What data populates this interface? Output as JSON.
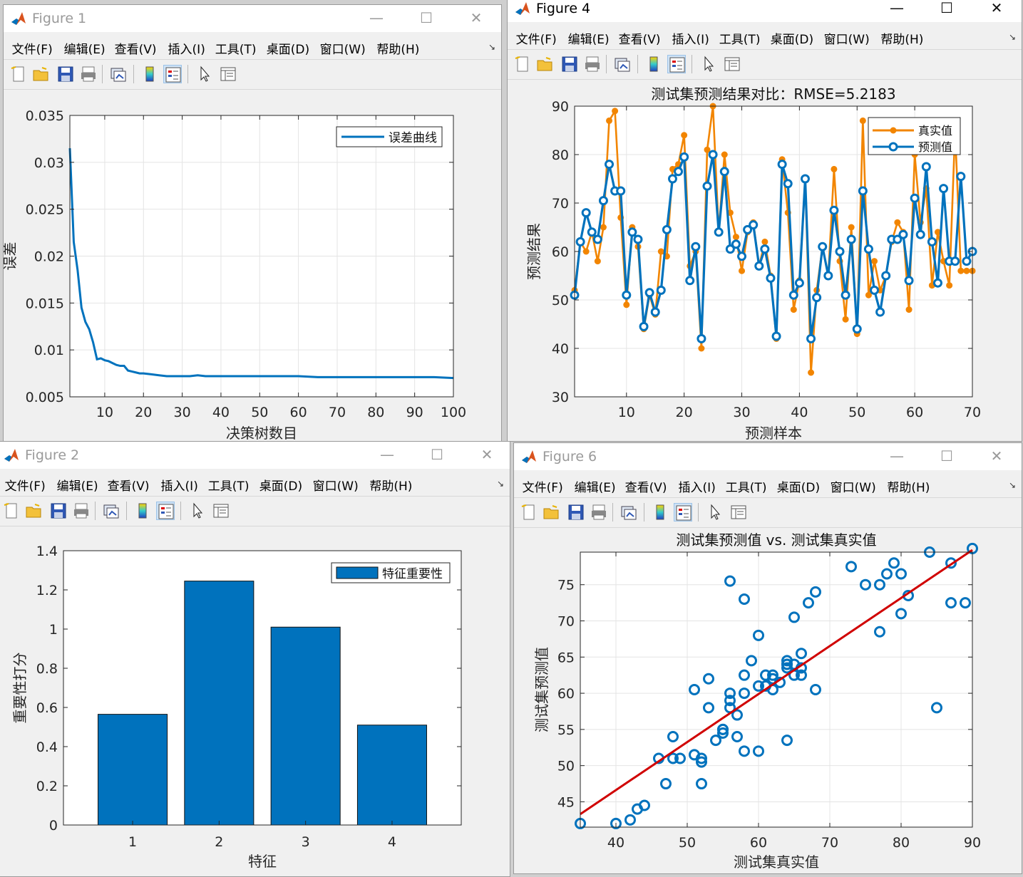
{
  "menus": [
    "文件(F)",
    "编辑(E)",
    "查看(V)",
    "插入(I)",
    "工具(T)",
    "桌面(D)",
    "窗口(W)",
    "帮助(H)"
  ],
  "window_buttons": {
    "minimize": "—",
    "maximize": "☐",
    "close": "✕"
  },
  "toolbar_icons": [
    "new-figure-icon",
    "open-file-icon",
    "save-icon",
    "print-icon",
    "link-plot-icon",
    "colorbar-icon",
    "legend-icon",
    "pointer-icon",
    "property-inspector-icon"
  ],
  "colors": {
    "blue": "#0072bd",
    "orange": "#f28500",
    "red": "#d00000",
    "axes_bg": "#ffffff",
    "grid": "#e4e4e4"
  },
  "windows": {
    "fig1": {
      "title": "Figure 1",
      "active": false
    },
    "fig4": {
      "title": "Figure 4",
      "active": true
    },
    "fig2": {
      "title": "Figure 2",
      "active": false
    },
    "fig6": {
      "title": "Figure 6",
      "active": false
    }
  },
  "chart_data": [
    {
      "id": "fig1",
      "type": "line",
      "title": "",
      "xlabel": "决策树数目",
      "ylabel": "误差",
      "xlim": [
        1,
        100
      ],
      "ylim": [
        0.005,
        0.035
      ],
      "xticks": [
        10,
        20,
        30,
        40,
        50,
        60,
        70,
        80,
        90,
        100
      ],
      "yticks": [
        0.005,
        0.01,
        0.015,
        0.02,
        0.025,
        0.03,
        0.035
      ],
      "yticklabels": [
        "0.005",
        "0.01",
        "0.015",
        "0.02",
        "0.025",
        "0.03",
        "0.035"
      ],
      "grid": true,
      "legend_position": "top-right",
      "series": [
        {
          "name": "误差曲线",
          "color": "#0072bd",
          "x": [
            1,
            2,
            3,
            4,
            5,
            6,
            7,
            8,
            9,
            10,
            11,
            12,
            13,
            14,
            15,
            16,
            17,
            18,
            19,
            20,
            22,
            24,
            26,
            28,
            30,
            32,
            34,
            36,
            38,
            40,
            45,
            50,
            55,
            60,
            65,
            70,
            75,
            80,
            85,
            90,
            95,
            100
          ],
          "y": [
            0.0315,
            0.0215,
            0.0185,
            0.0145,
            0.013,
            0.0122,
            0.0108,
            0.009,
            0.0091,
            0.0089,
            0.0088,
            0.0086,
            0.0084,
            0.0083,
            0.0083,
            0.0078,
            0.0077,
            0.0076,
            0.0075,
            0.0075,
            0.0074,
            0.0073,
            0.0072,
            0.0072,
            0.0072,
            0.0072,
            0.0073,
            0.0072,
            0.0072,
            0.0072,
            0.0072,
            0.0072,
            0.0072,
            0.0072,
            0.0071,
            0.0071,
            0.0071,
            0.0071,
            0.0071,
            0.0071,
            0.0071,
            0.007
          ]
        }
      ]
    },
    {
      "id": "fig4",
      "type": "line",
      "title": "测试集预测结果对比：RMSE=5.2183",
      "xlabel": "预测样本",
      "ylabel": "预测结果",
      "xlim": [
        1,
        70
      ],
      "ylim": [
        30,
        90
      ],
      "xticks": [
        10,
        20,
        30,
        40,
        50,
        60,
        70
      ],
      "yticks": [
        30,
        40,
        50,
        60,
        70,
        80,
        90
      ],
      "grid": true,
      "legend_position": "top-right",
      "series": [
        {
          "name": "真实值",
          "color": "#f28500",
          "marker": "dot",
          "y": [
            52,
            62,
            60,
            64,
            58,
            65,
            87,
            89,
            67,
            49,
            65,
            61,
            44,
            51,
            47,
            60,
            59,
            77,
            78,
            84,
            57,
            60,
            40,
            81,
            90,
            64,
            80,
            68,
            63,
            56,
            64,
            66,
            57,
            62,
            55,
            42,
            79,
            68,
            48,
            54,
            75,
            35,
            52,
            61,
            55,
            77,
            58,
            46,
            65,
            43,
            87,
            51,
            58,
            52,
            55,
            62,
            66,
            64,
            48,
            80,
            66,
            73,
            53,
            64,
            58,
            53,
            85,
            56,
            56,
            56
          ]
        },
        {
          "name": "预测值",
          "color": "#0072bd",
          "marker": "circle",
          "y": [
            51,
            62,
            68,
            64,
            62.5,
            70.5,
            78,
            72.5,
            72.5,
            51,
            64,
            62.5,
            44.5,
            51.5,
            47.5,
            52,
            64.5,
            75,
            76.5,
            79.5,
            54,
            61,
            42,
            73.5,
            80,
            64,
            76.5,
            60.5,
            61.5,
            59,
            64.5,
            65.5,
            57,
            60.5,
            54.5,
            42.5,
            78,
            74,
            51,
            53.5,
            75,
            42,
            50.5,
            61,
            55,
            68.5,
            60,
            51,
            62.5,
            44,
            72.5,
            60.5,
            52,
            47.5,
            55,
            62.5,
            62.5,
            63.5,
            54,
            71,
            63.5,
            77.5,
            62,
            53.5,
            73,
            58,
            58,
            75.5,
            58,
            60
          ]
        }
      ]
    },
    {
      "id": "fig2",
      "type": "bar",
      "title": "",
      "xlabel": "特征",
      "ylabel": "重要性打分",
      "categories": [
        "1",
        "2",
        "3",
        "4"
      ],
      "values": [
        0.565,
        1.245,
        1.01,
        0.51
      ],
      "xlim": [
        0.2,
        4.8
      ],
      "ylim": [
        0,
        1.4
      ],
      "yticks": [
        0,
        0.2,
        0.4,
        0.6,
        0.8,
        1,
        1.2,
        1.4
      ],
      "yticklabels": [
        "0",
        "0.2",
        "0.4",
        "0.6",
        "0.8",
        "1",
        "1.2",
        "1.4"
      ],
      "grid": false,
      "legend_position": "top-right",
      "series": [
        {
          "name": "特征重要性",
          "color": "#0072bd"
        }
      ]
    },
    {
      "id": "fig6",
      "type": "scatter",
      "title": "测试集预测值 vs. 测试集真实值",
      "xlabel": "测试集真实值",
      "ylabel": "测试集预测值",
      "xlim": [
        35,
        90
      ],
      "ylim": [
        41.5,
        79.5
      ],
      "xticks": [
        40,
        50,
        60,
        70,
        80,
        90
      ],
      "yticks": [
        45,
        50,
        55,
        60,
        65,
        70,
        75
      ],
      "grid": true,
      "series": [
        {
          "name": "",
          "color": "#0072bd",
          "marker": "circle",
          "x": [
            52,
            62,
            60,
            64,
            58,
            65,
            87,
            89,
            67,
            49,
            65,
            61,
            44,
            51,
            47,
            60,
            59,
            77,
            78,
            84,
            57,
            60,
            40,
            81,
            90,
            64,
            80,
            68,
            63,
            56,
            64,
            66,
            57,
            62,
            55,
            42,
            79,
            68,
            48,
            54,
            75,
            35,
            52,
            61,
            55,
            77,
            58,
            46,
            65,
            43,
            87,
            51,
            58,
            52,
            55,
            62,
            66,
            64,
            48,
            80,
            66,
            73,
            53,
            64,
            58,
            53,
            85,
            56,
            56,
            56
          ],
          "y": [
            51,
            62,
            68,
            64,
            62.5,
            70.5,
            78,
            72.5,
            72.5,
            51,
            64,
            62.5,
            44.5,
            51.5,
            47.5,
            52,
            64.5,
            75,
            76.5,
            79.5,
            54,
            61,
            42,
            73.5,
            80,
            64,
            76.5,
            60.5,
            61.5,
            59,
            64.5,
            65.5,
            57,
            60.5,
            54.5,
            42.5,
            78,
            74,
            51,
            53.5,
            75,
            42,
            50.5,
            61,
            55,
            68.5,
            60,
            51,
            62.5,
            44,
            72.5,
            60.5,
            52,
            47.5,
            55,
            62.5,
            62.5,
            63.5,
            54,
            71,
            63.5,
            77.5,
            62,
            53.5,
            73,
            58,
            58,
            75.5,
            58,
            60
          ]
        },
        {
          "name": "",
          "type": "fit-line",
          "color": "#d00000",
          "x": [
            35,
            90
          ],
          "y": [
            43.3,
            79.8
          ]
        }
      ]
    }
  ]
}
